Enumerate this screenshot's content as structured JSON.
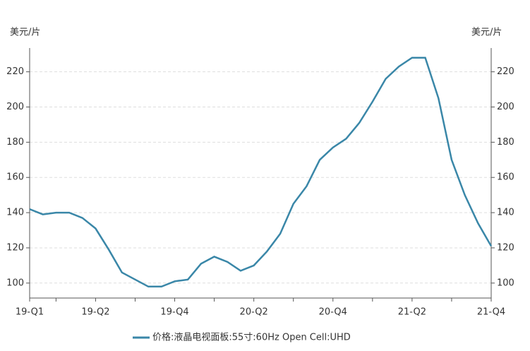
{
  "chart_data": {
    "type": "line",
    "y_label": "美元/片",
    "categories": [
      "19-Q1",
      null,
      null,
      null,
      null,
      "19-Q2",
      null,
      null,
      null,
      null,
      null,
      "19-Q4",
      null,
      null,
      null,
      null,
      null,
      "20-Q2",
      null,
      null,
      null,
      null,
      null,
      "20-Q4",
      null,
      null,
      null,
      null,
      null,
      "21-Q2",
      null,
      null,
      null,
      null,
      null,
      "21-Q4"
    ],
    "series": [
      {
        "name": "价格:液晶电视面板:55寸:60Hz Open Cell:UHD",
        "color": "#3a87a8",
        "values": [
          142,
          139,
          140,
          140,
          137,
          131,
          119,
          106,
          102,
          98,
          98,
          101,
          102,
          111,
          115,
          112,
          107,
          110,
          118,
          128,
          145,
          155,
          170,
          177,
          182,
          191,
          203,
          216,
          223,
          228,
          228,
          205,
          170,
          150,
          134,
          121
        ]
      }
    ],
    "ylim": [
      91.5,
      233.5
    ],
    "yticks": [
      100,
      120,
      140,
      160,
      180,
      200,
      220
    ],
    "grid": true
  }
}
